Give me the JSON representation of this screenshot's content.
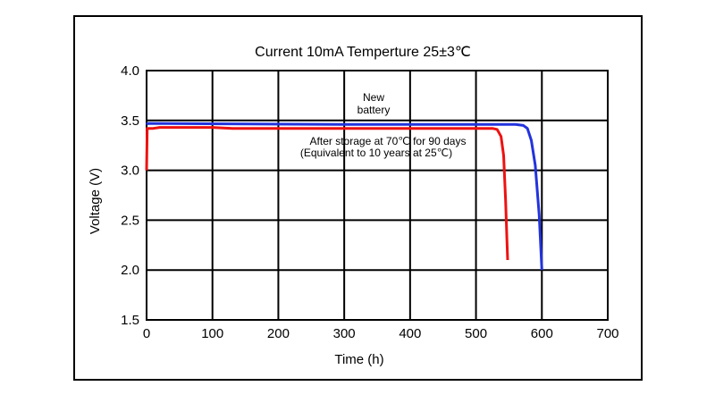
{
  "chart_data": {
    "type": "line",
    "title": "Current 10mA  Temperture 25±3℃",
    "xlabel": "Time (h)",
    "ylabel": "Voltage (V)",
    "xlim": [
      0,
      700
    ],
    "ylim": [
      1.5,
      4.0
    ],
    "x_ticks": [
      0,
      100,
      200,
      300,
      400,
      500,
      600,
      700
    ],
    "y_ticks": [
      1.5,
      2.0,
      2.5,
      3.0,
      3.5,
      4.0
    ],
    "x_tick_labels": [
      "0",
      "100",
      "200",
      "300",
      "400",
      "500",
      "600",
      "700"
    ],
    "y_tick_labels": [
      "1.5",
      "2.0",
      "2.5",
      "3.0",
      "3.5",
      "4.0"
    ],
    "grid": true,
    "annotations": {
      "new_battery": [
        "New",
        "battery"
      ],
      "after_storage": [
        "After storage at 70℃ for 90 days",
        "(Equivalent to 10 years at 25℃)"
      ]
    },
    "series": [
      {
        "color": "#2233dd",
        "points": [
          [
            0,
            3.46
          ],
          [
            2,
            3.47
          ],
          [
            300,
            3.46
          ],
          [
            400,
            3.46
          ],
          [
            500,
            3.46
          ],
          [
            560,
            3.46
          ],
          [
            572,
            3.45
          ],
          [
            578,
            3.42
          ],
          [
            584,
            3.3
          ],
          [
            590,
            3.05
          ],
          [
            596,
            2.55
          ],
          [
            600,
            2.0
          ]
        ]
      },
      {
        "color": "#ee1111",
        "points": [
          [
            0,
            3.0
          ],
          [
            1,
            3.42
          ],
          [
            10,
            3.42
          ],
          [
            20,
            3.43
          ],
          [
            100,
            3.43
          ],
          [
            130,
            3.42
          ],
          [
            300,
            3.42
          ],
          [
            500,
            3.42
          ],
          [
            525,
            3.42
          ],
          [
            532,
            3.41
          ],
          [
            538,
            3.34
          ],
          [
            542,
            3.15
          ],
          [
            545,
            2.7
          ],
          [
            547,
            2.3
          ],
          [
            548,
            2.1
          ]
        ]
      }
    ]
  }
}
